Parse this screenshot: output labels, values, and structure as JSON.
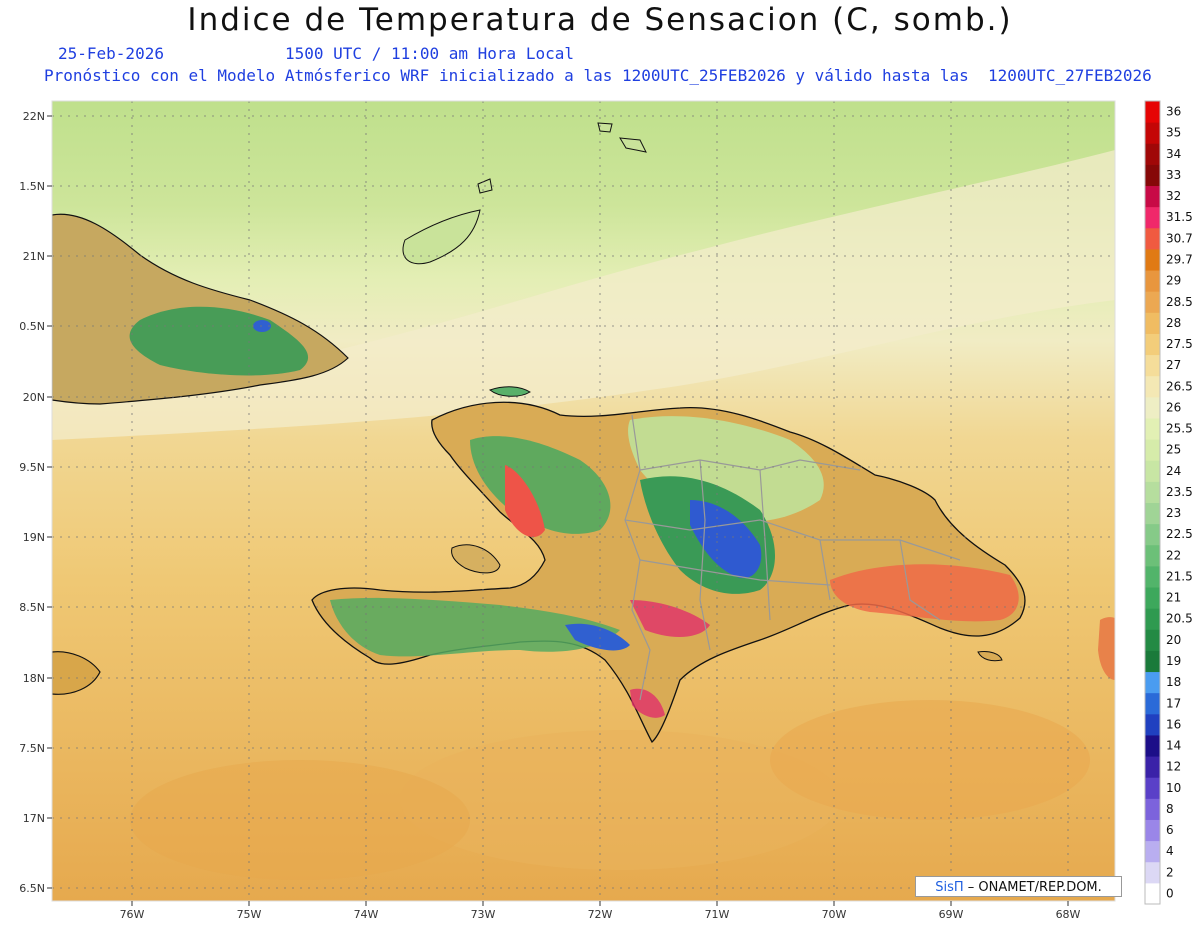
{
  "header": {
    "title": "Indice de Temperatura de Sensacion (C, somb.)",
    "date": "25-Feb-2026",
    "time": "1500 UTC / 11:00 am Hora Local",
    "description": "Pronóstico con el Modelo Atmósferico WRF inicializado a las 1200UTC_25FEB2026 y válido hasta las  1200UTC_27FEB2026"
  },
  "axes": {
    "lat_labels": [
      "22N",
      "1.5N",
      "21N",
      "0.5N",
      "20N",
      "9.5N",
      "19N",
      "8.5N",
      "18N",
      "7.5N",
      "17N",
      "6.5N"
    ],
    "lon_labels": [
      "76W",
      "75W",
      "74W",
      "73W",
      "72W",
      "71W",
      "70W",
      "69W",
      "68W"
    ]
  },
  "colorbar": {
    "levels": [
      "0",
      "2",
      "4",
      "6",
      "8",
      "10",
      "12",
      "14",
      "16",
      "17",
      "18",
      "19",
      "20",
      "20.5",
      "21",
      "21.5",
      "22",
      "22.5",
      "23",
      "23.5",
      "24",
      "25",
      "25.5",
      "26",
      "26.5",
      "27",
      "27.5",
      "28",
      "28.5",
      "29",
      "29.7",
      "30.7",
      "31.5",
      "32",
      "33",
      "34",
      "35",
      "36"
    ],
    "colors": [
      "#ffffff",
      "#dcd8f5",
      "#b9aef0",
      "#9a86e8",
      "#7c63dc",
      "#5a40c8",
      "#3a22a8",
      "#1c0e88",
      "#2040c0",
      "#2a6ad8",
      "#4a9cf0",
      "#1a7a3a",
      "#238a44",
      "#2f9a50",
      "#3da85c",
      "#52b46a",
      "#6cc078",
      "#86ca88",
      "#a0d496",
      "#b6de9e",
      "#c8e6a4",
      "#d6ecaa",
      "#e2f0b4",
      "#eeeec4",
      "#f4e8b4",
      "#f5dd9a",
      "#f3cd7a",
      "#f0bc62",
      "#eca852",
      "#e8963e",
      "#e07a14",
      "#f05a40",
      "#f0286a",
      "#c80a46",
      "#860808",
      "#a00808",
      "#c40606",
      "#e60404"
    ]
  },
  "map_overlay": {
    "land_color": "#7fb86a",
    "ocean_color": "#eec06a",
    "hot_color": "#f05a40",
    "cool_color": "#2f9a50",
    "cold_color": "#3050d0"
  },
  "credit": {
    "brand": "SisΠ",
    "text": "– ONAMET/REP.DOM."
  }
}
